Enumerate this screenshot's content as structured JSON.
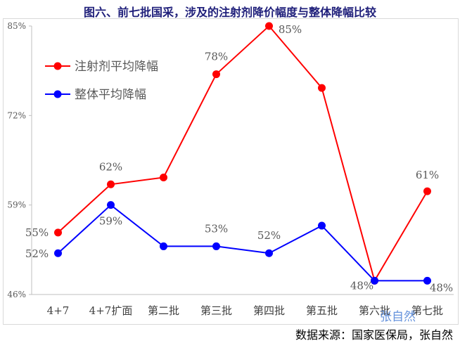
{
  "chart_data": {
    "type": "line",
    "title": "图六、前七批国采，涉及的注射剂降价幅度与整体降幅比较",
    "categories": [
      "4+7",
      "4+7扩面",
      "第二批",
      "第三批",
      "第四批",
      "第五批",
      "第六批",
      "第七批"
    ],
    "series": [
      {
        "name": "注射剂平均降幅",
        "color": "#ff0000",
        "values": [
          55,
          62,
          63,
          78,
          85,
          76,
          48,
          61
        ],
        "labels": [
          "55%",
          "62%",
          null,
          "78%",
          "85%",
          null,
          null,
          "61%"
        ]
      },
      {
        "name": "整体平均降幅",
        "color": "#0000ff",
        "values": [
          52,
          59,
          53,
          53,
          52,
          56,
          48,
          48
        ],
        "labels": [
          "52%",
          "59%",
          null,
          "53%",
          "52%",
          null,
          "48%",
          "48%"
        ]
      }
    ],
    "ylim": [
      46,
      85
    ],
    "yticks": [
      46,
      59,
      72,
      85
    ],
    "ytick_labels": [
      "46%",
      "59%",
      "72%",
      "85%"
    ],
    "xlabel": "",
    "ylabel": "",
    "grid": false,
    "legend": "top-left"
  },
  "source": "数据来源：国家医保局，张自然",
  "watermark": "张自然"
}
